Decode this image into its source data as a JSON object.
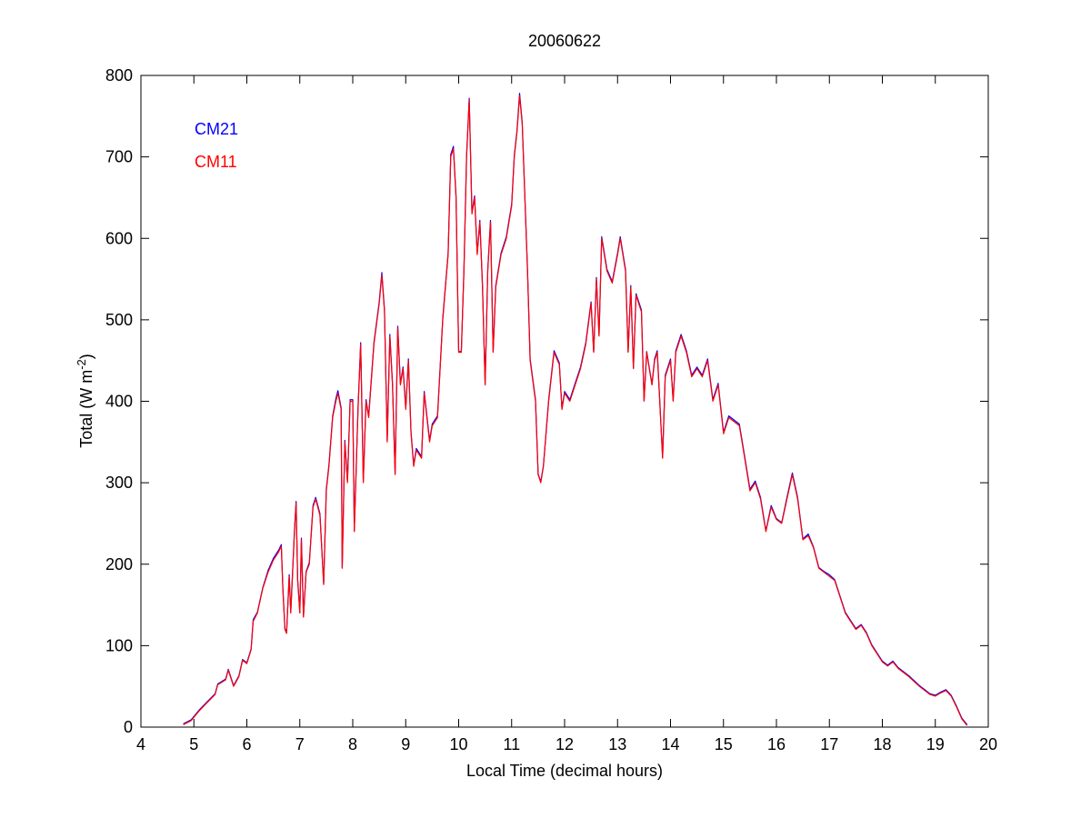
{
  "chart_data": {
    "type": "line",
    "title": "20060622",
    "xlabel": "Local Time (decimal hours)",
    "ylabel": "Total (W m",
    "ylabel_sup": "-2",
    "ylabel_end": ")",
    "xlim": [
      4,
      20
    ],
    "ylim": [
      0,
      800
    ],
    "xticks": [
      4,
      5,
      6,
      7,
      8,
      9,
      10,
      11,
      12,
      13,
      14,
      15,
      16,
      17,
      18,
      19,
      20
    ],
    "yticks": [
      0,
      100,
      200,
      300,
      400,
      500,
      600,
      700,
      800
    ],
    "grid": false,
    "legend_placement": "top-left",
    "x": [
      4.8,
      4.95,
      5.1,
      5.25,
      5.4,
      5.45,
      5.6,
      5.65,
      5.75,
      5.85,
      5.92,
      6.0,
      6.08,
      6.12,
      6.2,
      6.3,
      6.4,
      6.5,
      6.6,
      6.65,
      6.68,
      6.72,
      6.75,
      6.8,
      6.83,
      6.9,
      6.93,
      6.96,
      7.0,
      7.03,
      7.07,
      7.12,
      7.18,
      7.25,
      7.3,
      7.38,
      7.45,
      7.5,
      7.55,
      7.62,
      7.68,
      7.72,
      7.78,
      7.8,
      7.85,
      7.9,
      7.95,
      8.0,
      8.03,
      8.1,
      8.15,
      8.2,
      8.25,
      8.3,
      8.4,
      8.5,
      8.55,
      8.6,
      8.65,
      8.7,
      8.75,
      8.8,
      8.85,
      8.9,
      8.95,
      9.0,
      9.05,
      9.1,
      9.15,
      9.2,
      9.3,
      9.35,
      9.45,
      9.5,
      9.6,
      9.7,
      9.8,
      9.85,
      9.9,
      9.95,
      10.0,
      10.05,
      10.1,
      10.15,
      10.2,
      10.25,
      10.3,
      10.35,
      10.4,
      10.45,
      10.5,
      10.55,
      10.6,
      10.65,
      10.7,
      10.8,
      10.9,
      11.0,
      11.05,
      11.1,
      11.15,
      11.2,
      11.25,
      11.3,
      11.35,
      11.45,
      11.5,
      11.55,
      11.6,
      11.7,
      11.8,
      11.9,
      11.95,
      12.0,
      12.1,
      12.2,
      12.3,
      12.4,
      12.5,
      12.55,
      12.6,
      12.65,
      12.7,
      12.8,
      12.9,
      13.0,
      13.05,
      13.15,
      13.2,
      13.25,
      13.3,
      13.35,
      13.45,
      13.5,
      13.55,
      13.65,
      13.7,
      13.75,
      13.85,
      13.9,
      14.0,
      14.05,
      14.1,
      14.2,
      14.3,
      14.4,
      14.5,
      14.6,
      14.7,
      14.8,
      14.9,
      15.0,
      15.1,
      15.2,
      15.3,
      15.4,
      15.5,
      15.6,
      15.7,
      15.8,
      15.9,
      16.0,
      16.1,
      16.2,
      16.3,
      16.4,
      16.5,
      16.6,
      16.7,
      16.8,
      16.9,
      17.0,
      17.1,
      17.2,
      17.3,
      17.4,
      17.5,
      17.6,
      17.7,
      17.8,
      17.9,
      18.0,
      18.1,
      18.2,
      18.3,
      18.5,
      18.7,
      18.9,
      19.0,
      19.1,
      19.2,
      19.3,
      19.4,
      19.5,
      19.6
    ],
    "series": [
      {
        "name": "CM21",
        "color": "#0000ff",
        "values": [
          4,
          9,
          21,
          31,
          41,
          53,
          59,
          71,
          51,
          63,
          83,
          79,
          96,
          132,
          141,
          171,
          192,
          207,
          217,
          224,
          171,
          121,
          116,
          187,
          141,
          242,
          277,
          181,
          141,
          232,
          136,
          191,
          202,
          272,
          282,
          262,
          176,
          292,
          322,
          382,
          403,
          413,
          392,
          196,
          352,
          302,
          402,
          402,
          241,
          392,
          472,
          302,
          402,
          382,
          472,
          522,
          558,
          512,
          352,
          482,
          422,
          311,
          492,
          422,
          442,
          392,
          452,
          362,
          322,
          342,
          332,
          412,
          352,
          372,
          382,
          502,
          582,
          703,
          713,
          652,
          461,
          461,
          562,
          702,
          772,
          632,
          652,
          582,
          622,
          542,
          421,
          562,
          622,
          461,
          542,
          582,
          602,
          642,
          702,
          732,
          778,
          742,
          652,
          562,
          452,
          402,
          311,
          301,
          321,
          402,
          462,
          447,
          391,
          412,
          402,
          422,
          442,
          472,
          522,
          461,
          552,
          481,
          602,
          562,
          547,
          582,
          602,
          562,
          461,
          542,
          441,
          532,
          512,
          401,
          461,
          421,
          452,
          462,
          331,
          432,
          452,
          401,
          462,
          482,
          462,
          432,
          442,
          432,
          452,
          402,
          422,
          362,
          382,
          377,
          372,
          332,
          292,
          302,
          282,
          241,
          272,
          256,
          251,
          282,
          312,
          282,
          231,
          237,
          221,
          196,
          191,
          187,
          181,
          161,
          141,
          131,
          121,
          126,
          116,
          101,
          91,
          81,
          76,
          81,
          73,
          63,
          51,
          41,
          39,
          43,
          46,
          39,
          26,
          11,
          3
        ]
      },
      {
        "name": "CM11",
        "color": "#ff0000",
        "values": [
          3,
          8,
          20,
          30,
          40,
          52,
          58,
          70,
          50,
          62,
          82,
          78,
          95,
          130,
          140,
          170,
          190,
          205,
          215,
          222,
          170,
          120,
          115,
          185,
          140,
          240,
          275,
          180,
          140,
          230,
          135,
          190,
          200,
          270,
          280,
          260,
          175,
          290,
          320,
          380,
          400,
          410,
          390,
          195,
          350,
          300,
          400,
          400,
          240,
          390,
          470,
          300,
          400,
          380,
          470,
          520,
          555,
          510,
          350,
          480,
          420,
          310,
          490,
          420,
          440,
          390,
          450,
          360,
          320,
          340,
          330,
          410,
          350,
          370,
          380,
          500,
          580,
          700,
          710,
          650,
          460,
          460,
          560,
          700,
          770,
          630,
          650,
          580,
          620,
          540,
          420,
          560,
          620,
          460,
          540,
          580,
          600,
          640,
          700,
          730,
          775,
          740,
          650,
          560,
          450,
          400,
          310,
          300,
          320,
          400,
          460,
          445,
          390,
          410,
          400,
          420,
          440,
          470,
          520,
          460,
          550,
          480,
          600,
          560,
          545,
          580,
          600,
          560,
          460,
          540,
          440,
          530,
          510,
          400,
          460,
          420,
          450,
          460,
          330,
          430,
          450,
          400,
          460,
          480,
          460,
          430,
          440,
          430,
          450,
          400,
          420,
          360,
          380,
          375,
          370,
          330,
          290,
          300,
          280,
          240,
          270,
          255,
          250,
          280,
          310,
          280,
          230,
          235,
          220,
          195,
          190,
          185,
          180,
          160,
          140,
          130,
          120,
          125,
          115,
          100,
          90,
          80,
          75,
          80,
          72,
          62,
          50,
          40,
          38,
          42,
          45,
          38,
          25,
          10,
          2
        ]
      }
    ]
  }
}
